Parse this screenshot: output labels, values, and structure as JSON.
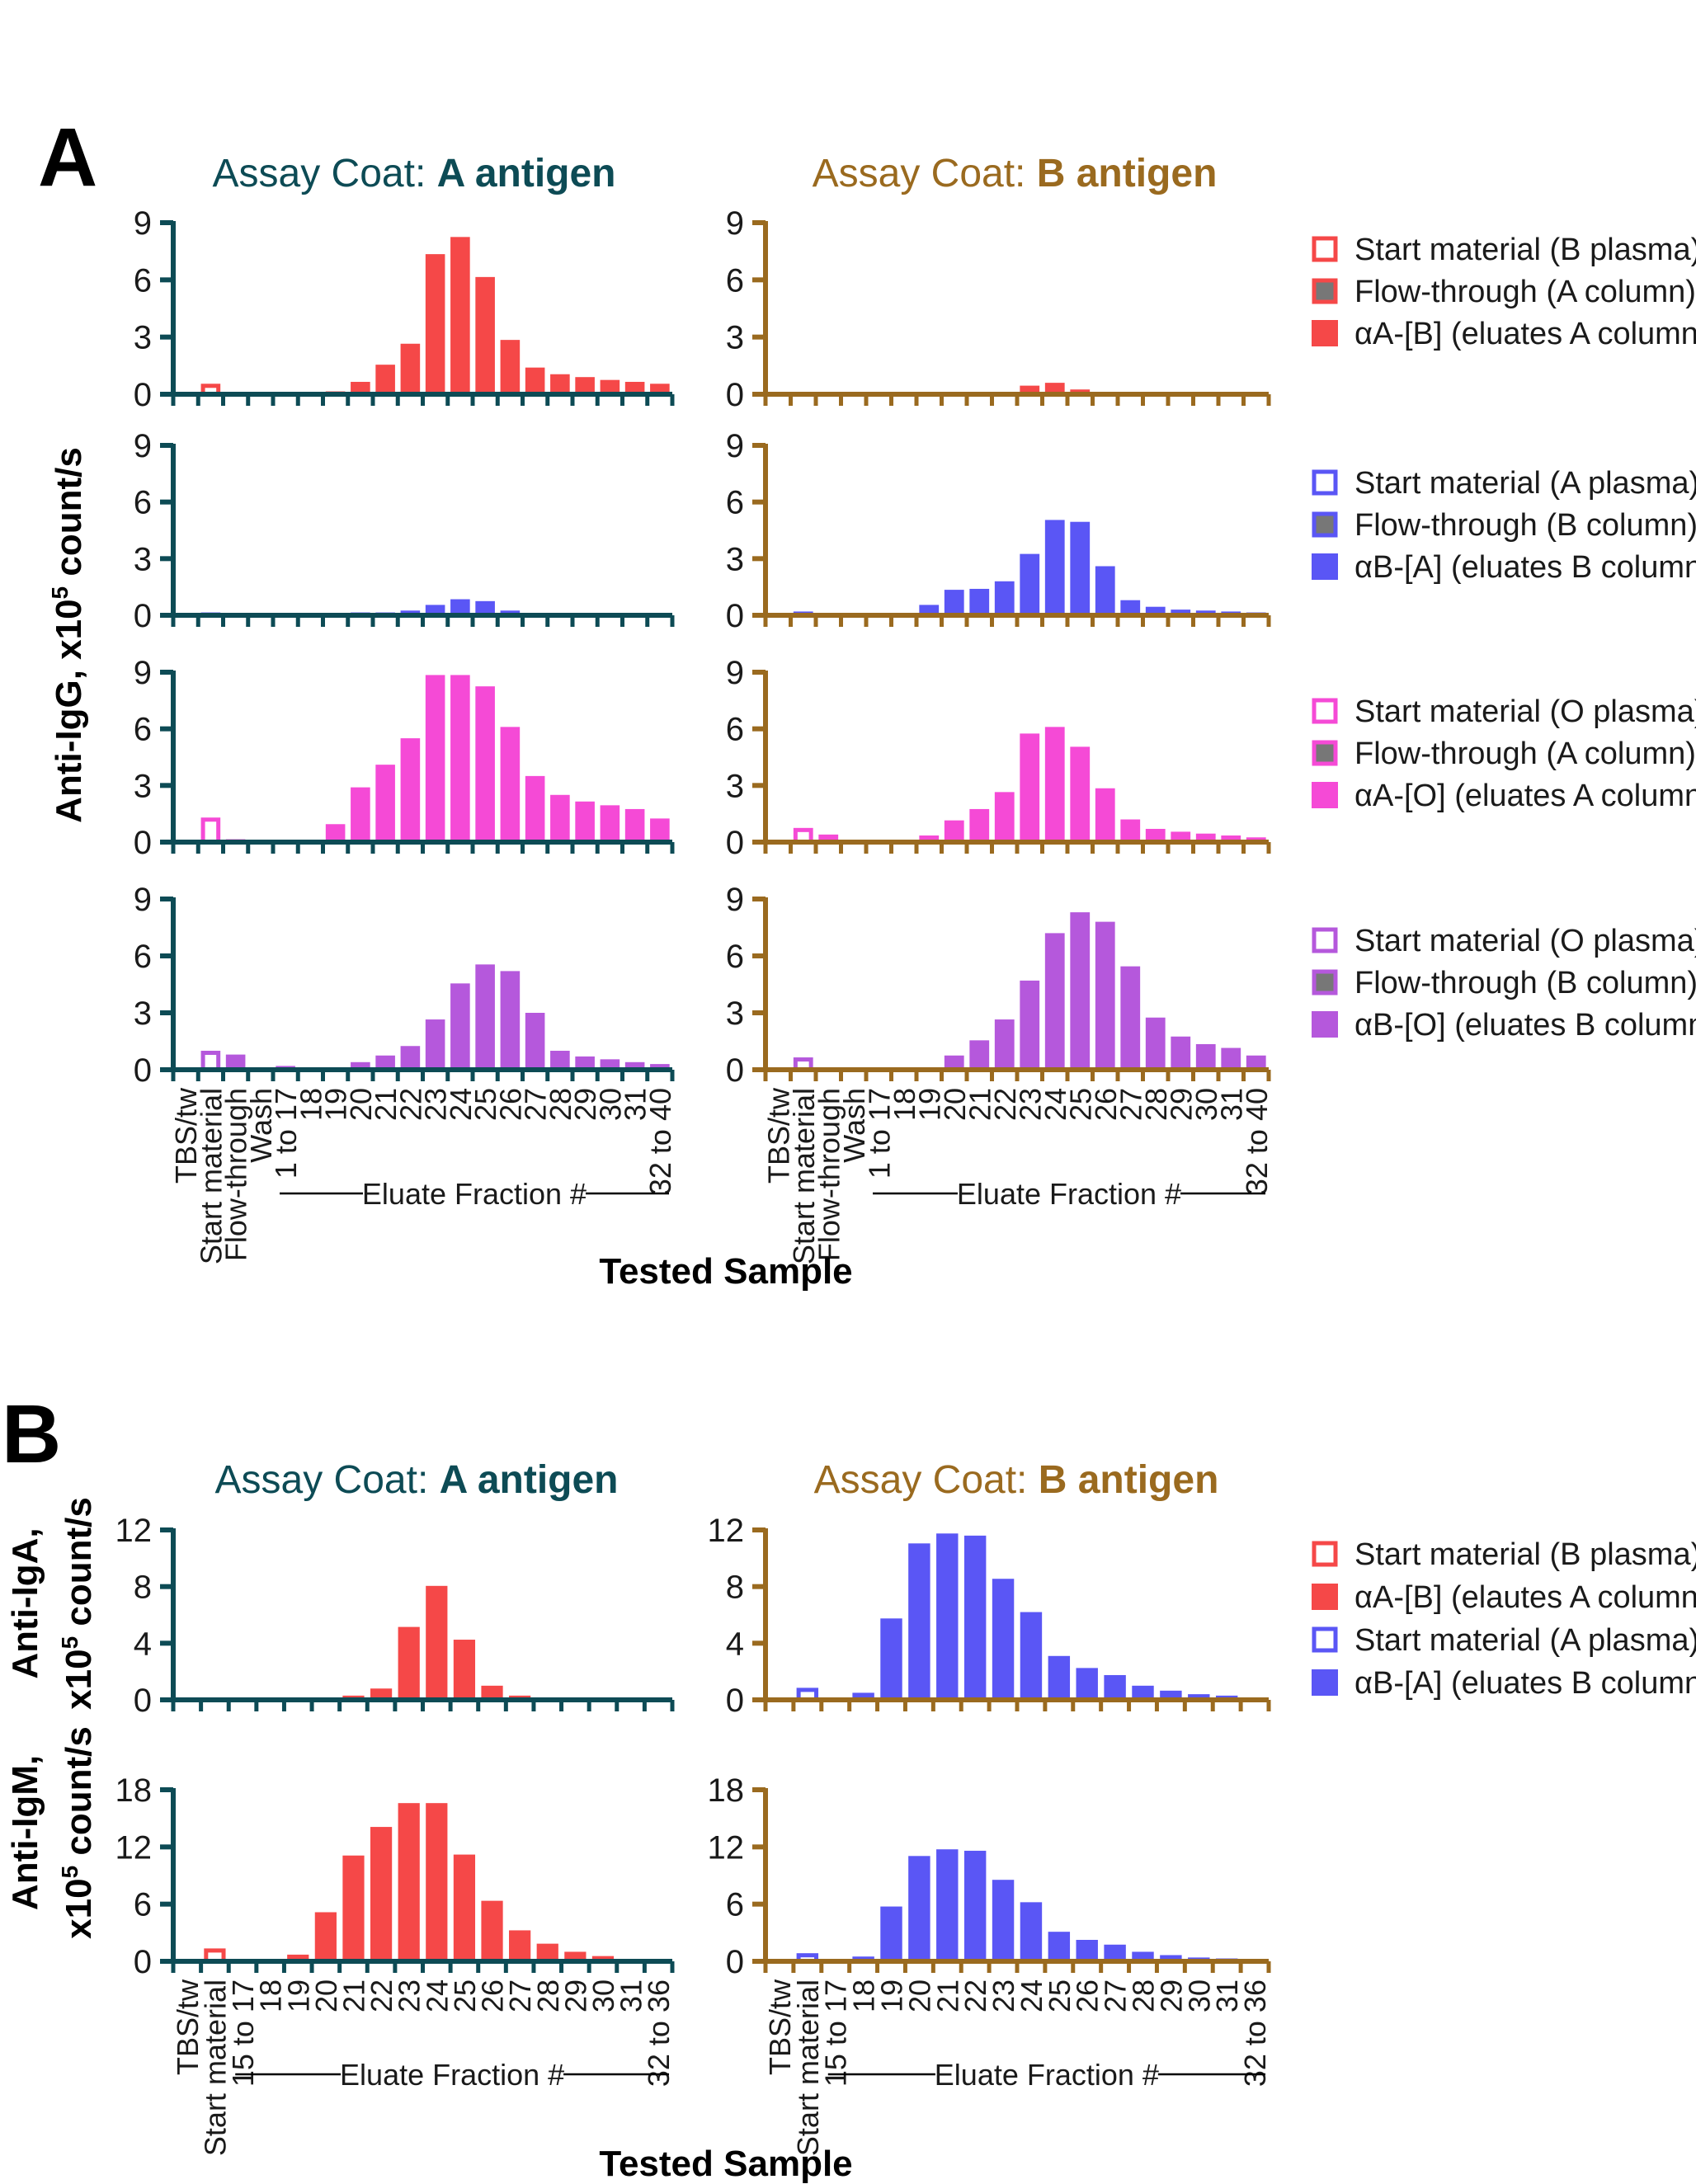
{
  "panel_letters": [
    "A",
    "B"
  ],
  "coat": {
    "prefix": "Assay Coat: ",
    "a_strong": "A antigen",
    "b_strong": "B antigen"
  },
  "colors": {
    "coat_a": "#0d4b55",
    "coat_b": "#9a6a1f",
    "red": "#f54848",
    "blue": "#5a56f5",
    "pink": "#f54ad6",
    "purple": "#b558dc",
    "gray_fill": "#777777",
    "text": "#1a1a1a"
  },
  "axis_titles": {
    "a_y": "Anti-IgG, x10",
    "a_y_sup": "5",
    "a_y_tail": " count/s",
    "b_iga_line1": "Anti-IgA,",
    "b_igm_line1": "Anti-IgM,",
    "b_line2": "x10",
    "b_line2_sup": "5",
    "b_line2_tail": " count/s",
    "x_title": "Tested Sample",
    "eluate": "Eluate Fraction #"
  },
  "legends_a": [
    [
      "Start material (B plasma)",
      "Flow-through (A column)",
      "αA-[B] (eluates A column)"
    ],
    [
      "Start material (A plasma)",
      "Flow-through (B column)",
      "αB-[A] (eluates B column)"
    ],
    [
      "Start material (O plasma)",
      "Flow-through (A column)",
      "αA-[O] (eluates A column)"
    ],
    [
      "Start material (O plasma)",
      "Flow-through (B column)",
      "αB-[O] (eluates B column)"
    ]
  ],
  "legend_b": [
    "Start material (B plasma)",
    "αA-[B] (elautes A column)",
    "Start material (A plasma)",
    "αB-[A] (eluates B column)"
  ],
  "chart_data": [
    {
      "panel": "A",
      "type": "bar",
      "categories": [
        "TBS/tw",
        "Start material",
        "Flow-through",
        "Wash",
        "1 to 17",
        "18",
        "19",
        "20",
        "21",
        "22",
        "23",
        "24",
        "25",
        "26",
        "27",
        "28",
        "29",
        "30",
        "31",
        "32 to 40"
      ],
      "yticks": [
        0,
        3,
        6,
        9
      ],
      "ylim": [
        0,
        9
      ],
      "charts": [
        {
          "coat": "A antigen",
          "row": 1,
          "color": "red",
          "values": [
            0,
            0.55,
            0.1,
            0.05,
            0.05,
            0.05,
            0.15,
            0.65,
            1.55,
            2.65,
            7.35,
            8.25,
            6.15,
            2.85,
            1.4,
            1.05,
            0.9,
            0.75,
            0.65,
            0.55
          ]
        },
        {
          "coat": "B antigen",
          "row": 1,
          "color": "red",
          "values": [
            0,
            0.05,
            0,
            0,
            0,
            0,
            0,
            0,
            0,
            0,
            0.45,
            0.6,
            0.25,
            0.05,
            0,
            0,
            0,
            0,
            0,
            0
          ]
        },
        {
          "coat": "A antigen",
          "row": 2,
          "color": "blue",
          "values": [
            0.05,
            0.15,
            0.1,
            0.05,
            0.05,
            0.05,
            0.05,
            0.15,
            0.15,
            0.25,
            0.55,
            0.85,
            0.75,
            0.25,
            0.05,
            0.05,
            0.05,
            0.05,
            0.05,
            0.05
          ]
        },
        {
          "coat": "B antigen",
          "row": 2,
          "color": "blue",
          "values": [
            0,
            0.2,
            0.05,
            0.05,
            0.05,
            0.05,
            0.55,
            1.35,
            1.4,
            1.8,
            3.25,
            5.05,
            4.95,
            2.6,
            0.8,
            0.45,
            0.3,
            0.25,
            0.2,
            0.15
          ]
        },
        {
          "coat": "A antigen",
          "row": 3,
          "color": "pink",
          "values": [
            0,
            1.3,
            0.15,
            0.05,
            0.05,
            0.05,
            0.95,
            2.9,
            4.1,
            5.5,
            8.85,
            8.85,
            8.25,
            6.1,
            3.5,
            2.5,
            2.15,
            1.95,
            1.75,
            1.25
          ]
        },
        {
          "coat": "B antigen",
          "row": 3,
          "color": "pink",
          "values": [
            0,
            0.75,
            0.4,
            0.05,
            0.05,
            0.05,
            0.35,
            1.15,
            1.75,
            2.65,
            5.75,
            6.1,
            5.05,
            2.85,
            1.2,
            0.7,
            0.55,
            0.45,
            0.35,
            0.25
          ]
        },
        {
          "coat": "A antigen",
          "row": 4,
          "color": "purple",
          "values": [
            0,
            1.0,
            0.8,
            0.05,
            0.2,
            0.05,
            0.1,
            0.4,
            0.75,
            1.25,
            2.65,
            4.55,
            5.55,
            5.2,
            3.0,
            1.0,
            0.7,
            0.55,
            0.4,
            0.3
          ]
        },
        {
          "coat": "B antigen",
          "row": 4,
          "color": "purple",
          "values": [
            0,
            0.65,
            0.1,
            0.05,
            0.05,
            0.05,
            0.05,
            0.75,
            1.55,
            2.65,
            4.7,
            7.2,
            8.3,
            7.8,
            5.45,
            2.75,
            1.75,
            1.35,
            1.15,
            0.75
          ]
        }
      ]
    },
    {
      "panel": "B",
      "type": "bar",
      "categories": [
        "TBS/tw",
        "Start material",
        "15 to 17",
        "18",
        "19",
        "20",
        "21",
        "22",
        "23",
        "24",
        "25",
        "26",
        "27",
        "28",
        "29",
        "30",
        "31",
        "32 to 36"
      ],
      "charts": [
        {
          "coat": "A antigen",
          "isotype": "IgA",
          "yticks": [
            0,
            4,
            8,
            12
          ],
          "ylim": [
            0,
            12
          ],
          "color": "red",
          "values": [
            0,
            0.1,
            0.05,
            0.05,
            0.05,
            0.1,
            0.3,
            0.8,
            5.15,
            8.05,
            4.25,
            1.0,
            0.3,
            0.1,
            0.05,
            0.05,
            0.05,
            0.05
          ]
        },
        {
          "coat": "B antigen",
          "isotype": "IgA",
          "yticks": [
            0,
            4,
            8,
            12
          ],
          "ylim": [
            0,
            12
          ],
          "color": "blue",
          "values": [
            0,
            0.85,
            0.1,
            0.5,
            5.75,
            11.05,
            11.75,
            11.6,
            8.55,
            6.2,
            3.1,
            2.25,
            1.75,
            1.0,
            0.65,
            0.4,
            0.3,
            0.1
          ]
        },
        {
          "coat": "A antigen",
          "isotype": "IgM",
          "yticks": [
            0,
            6,
            12,
            18
          ],
          "ylim": [
            0,
            18
          ],
          "color": "red",
          "values": [
            0,
            1.35,
            0.1,
            0.1,
            0.7,
            5.15,
            11.1,
            14.1,
            16.6,
            16.6,
            11.2,
            6.35,
            3.25,
            1.85,
            1.0,
            0.55,
            0.1,
            0.05
          ]
        },
        {
          "coat": "B antigen",
          "isotype": "IgM",
          "yticks": [
            0,
            6,
            12,
            18
          ],
          "ylim": [
            0,
            18
          ],
          "color": "blue",
          "values": [
            0,
            0.85,
            0.1,
            0.5,
            5.75,
            11.05,
            11.75,
            11.6,
            8.55,
            6.2,
            3.1,
            2.25,
            1.75,
            1.0,
            0.65,
            0.4,
            0.3,
            0.1
          ]
        }
      ]
    }
  ]
}
